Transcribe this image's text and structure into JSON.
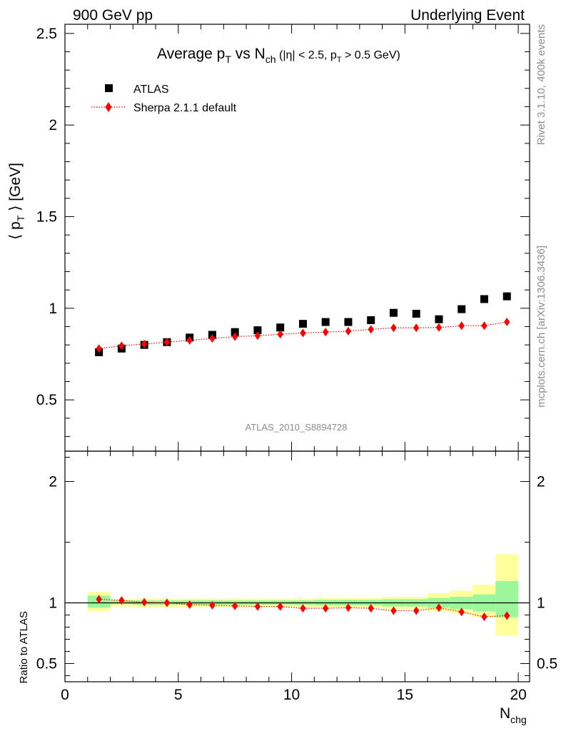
{
  "header": {
    "left": "900 GeV pp",
    "right": "Underlying Event"
  },
  "side_text": {
    "rivet": "Rivet 3.1.10,  400k events",
    "mcplots": "mcplots.cern.ch [arXiv:1306.3436]"
  },
  "chart_data": {
    "type": "scatter",
    "title": {
      "prefix": "Average p",
      "sub_T": "T",
      "middle": " vs N",
      "sub_ch": "ch",
      "cuts_a": " (|η| < 2.5, p",
      "cuts_sub": "T",
      "cuts_b": " > 0.5 GeV)"
    },
    "analysis_label": "ATLAS_2010_S8894728",
    "xlabel": {
      "main": "N",
      "sub": "chg"
    },
    "ylabel": {
      "open": "⟨ p",
      "sub": "T",
      "close": " ⟩ [GeV]"
    },
    "ratio_ylabel": "Ratio to ATLAS",
    "xlim": [
      0,
      20.5
    ],
    "main_ylim": [
      0.22,
      2.55
    ],
    "ratio_ylim": [
      0.35,
      2.25
    ],
    "x_ticks": [
      "0",
      "5",
      "10",
      "15",
      "20"
    ],
    "main_y_ticks": [
      "0.5",
      "1",
      "1.5",
      "2",
      "2.5"
    ],
    "ratio_y_ticks": [
      "0.5",
      "1",
      "2"
    ],
    "x": [
      1.5,
      2.5,
      3.5,
      4.5,
      5.5,
      6.5,
      7.5,
      8.5,
      9.5,
      10.5,
      11.5,
      12.5,
      13.5,
      14.5,
      15.5,
      16.5,
      17.5,
      18.5,
      19.5
    ],
    "bin_edges": [
      1,
      2,
      3,
      4,
      5,
      6,
      7,
      8,
      9,
      10,
      11,
      12,
      13,
      14,
      15,
      16,
      17,
      18,
      19,
      20
    ],
    "series": [
      {
        "name": "ATLAS",
        "color": "#000000",
        "marker": "square",
        "values": [
          0.76,
          0.78,
          0.8,
          0.815,
          0.84,
          0.855,
          0.87,
          0.88,
          0.895,
          0.915,
          0.925,
          0.925,
          0.935,
          0.975,
          0.97,
          0.94,
          0.995,
          1.05,
          1.065
        ]
      },
      {
        "name": "Sherpa 2.1.1 default",
        "color": "#ff0000",
        "marker": "diamond",
        "line": "dotted",
        "values": [
          0.78,
          0.795,
          0.805,
          0.815,
          0.825,
          0.835,
          0.845,
          0.85,
          0.858,
          0.865,
          0.87,
          0.875,
          0.885,
          0.893,
          0.893,
          0.895,
          0.905,
          0.905,
          0.925
        ]
      }
    ],
    "ratio": {
      "reference": 1,
      "values": [
        1.03,
        1.02,
        1.005,
        1.0,
        0.985,
        0.98,
        0.975,
        0.97,
        0.97,
        0.955,
        0.955,
        0.96,
        0.955,
        0.935,
        0.935,
        0.96,
        0.925,
        0.885,
        0.895
      ],
      "stat_band": [
        [
          0.96,
          1.06
        ],
        [
          0.99,
          1.02
        ],
        [
          0.985,
          1.02
        ],
        [
          0.985,
          1.02
        ],
        [
          0.985,
          1.02
        ],
        [
          0.985,
          1.02
        ],
        [
          0.985,
          1.02
        ],
        [
          0.985,
          1.02
        ],
        [
          0.985,
          1.02
        ],
        [
          0.985,
          1.02
        ],
        [
          0.98,
          1.025
        ],
        [
          0.98,
          1.025
        ],
        [
          0.98,
          1.025
        ],
        [
          0.97,
          1.03
        ],
        [
          0.97,
          1.03
        ],
        [
          0.96,
          1.04
        ],
        [
          0.95,
          1.05
        ],
        [
          0.93,
          1.07
        ],
        [
          0.88,
          1.18
        ]
      ],
      "total_band": [
        [
          0.93,
          1.09
        ],
        [
          0.97,
          1.03
        ],
        [
          0.965,
          1.035
        ],
        [
          0.965,
          1.035
        ],
        [
          0.965,
          1.035
        ],
        [
          0.965,
          1.035
        ],
        [
          0.965,
          1.035
        ],
        [
          0.965,
          1.035
        ],
        [
          0.965,
          1.035
        ],
        [
          0.965,
          1.035
        ],
        [
          0.96,
          1.04
        ],
        [
          0.96,
          1.04
        ],
        [
          0.96,
          1.04
        ],
        [
          0.95,
          1.05
        ],
        [
          0.95,
          1.05
        ],
        [
          0.93,
          1.08
        ],
        [
          0.91,
          1.1
        ],
        [
          0.88,
          1.15
        ],
        [
          0.73,
          1.4
        ]
      ],
      "stat_color": "#9cf79c",
      "total_color": "#ffff9c"
    },
    "legend_position": "top-left",
    "grid": false
  }
}
